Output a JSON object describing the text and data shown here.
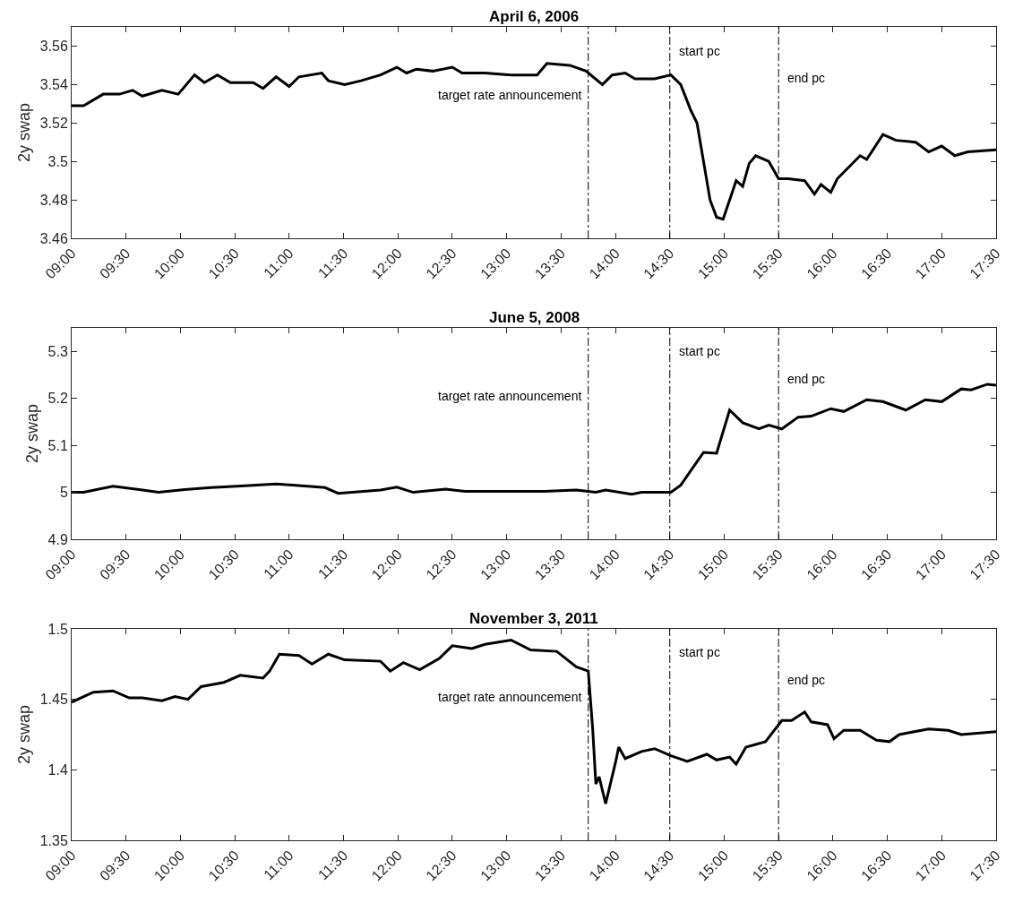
{
  "chart_data": [
    {
      "type": "line",
      "title": "April 6, 2006",
      "ylabel": "2y swap",
      "xlim": [
        9,
        17.5
      ],
      "ylim": [
        3.46,
        3.57
      ],
      "yticks": [
        3.46,
        3.48,
        3.5,
        3.52,
        3.54,
        3.56
      ],
      "marker": "none",
      "line_style": "solid",
      "xticks": [
        {
          "value": 9,
          "label": "09:00"
        },
        {
          "value": 9.5,
          "label": "09:30"
        },
        {
          "value": 10,
          "label": "10:00"
        },
        {
          "value": 10.5,
          "label": "10:30"
        },
        {
          "value": 11,
          "label": "11:00"
        },
        {
          "value": 11.5,
          "label": "11:30"
        },
        {
          "value": 12,
          "label": "12:00"
        },
        {
          "value": 12.5,
          "label": "12:30"
        },
        {
          "value": 13,
          "label": "13:00"
        },
        {
          "value": 13.5,
          "label": "13:30"
        },
        {
          "value": 14,
          "label": "14:00"
        },
        {
          "value": 14.5,
          "label": "14:30"
        },
        {
          "value": 15,
          "label": "15:00"
        },
        {
          "value": 15.5,
          "label": "15:30"
        },
        {
          "value": 16,
          "label": "16:00"
        },
        {
          "value": 16.5,
          "label": "16:30"
        },
        {
          "value": 17,
          "label": "17:00"
        },
        {
          "value": 17.5,
          "label": "17:30"
        }
      ],
      "x": [
        9,
        9.11,
        9.29,
        9.44,
        9.56,
        9.65,
        9.83,
        9.98,
        10.13,
        10.22,
        10.34,
        10.46,
        10.67,
        10.76,
        10.88,
        11.0,
        11.09,
        11.3,
        11.36,
        11.51,
        11.66,
        11.84,
        11.99,
        12.08,
        12.17,
        12.32,
        12.5,
        12.59,
        12.8,
        13.04,
        13.28,
        13.37,
        13.58,
        13.73,
        13.88,
        13.97,
        14.09,
        14.18,
        14.36,
        14.51,
        14.6,
        14.69,
        14.75,
        14.81,
        14.87,
        14.93,
        14.99,
        15.05,
        15.11,
        15.17,
        15.23,
        15.29,
        15.41,
        15.5,
        15.59,
        15.74,
        15.83,
        15.89,
        15.98,
        16.04,
        16.25,
        16.31,
        16.46,
        16.58,
        16.76,
        16.88,
        17.0,
        17.12,
        17.24,
        17.5
      ],
      "series": [
        {
          "color": "#000000",
          "values": [
            3.529,
            3.529,
            3.535,
            3.535,
            3.537,
            3.534,
            3.537,
            3.535,
            3.545,
            3.541,
            3.545,
            3.541,
            3.541,
            3.538,
            3.544,
            3.539,
            3.544,
            3.546,
            3.542,
            3.54,
            3.542,
            3.545,
            3.549,
            3.546,
            3.548,
            3.547,
            3.549,
            3.546,
            3.546,
            3.545,
            3.545,
            3.551,
            3.55,
            3.547,
            3.54,
            3.545,
            3.546,
            3.543,
            3.543,
            3.545,
            3.54,
            3.527,
            3.52,
            3.5,
            3.48,
            3.471,
            3.47,
            3.48,
            3.49,
            3.487,
            3.499,
            3.503,
            3.5,
            3.491,
            3.491,
            3.49,
            3.483,
            3.488,
            3.484,
            3.491,
            3.503,
            3.501,
            3.514,
            3.511,
            3.51,
            3.505,
            3.508,
            3.503,
            3.505,
            3.506
          ]
        }
      ],
      "ref_lines": [
        {
          "axis": "x",
          "value": 13.75,
          "label": "target rate announcement",
          "color": "#000000",
          "line_style": "dashdot"
        },
        {
          "axis": "x",
          "value": 14.5,
          "label": "start pc",
          "color": "#000000",
          "line_style": "dashdot"
        },
        {
          "axis": "x",
          "value": 15.5,
          "label": "end pc",
          "color": "#000000",
          "line_style": "dashdot"
        }
      ]
    },
    {
      "type": "line",
      "title": "June 5, 2008",
      "ylabel": "2y swap",
      "xlim": [
        9,
        17.5
      ],
      "ylim": [
        4.9,
        5.35
      ],
      "yticks": [
        4.9,
        5,
        5.1,
        5.2,
        5.3
      ],
      "marker": "none",
      "line_style": "solid",
      "xticks": [
        {
          "value": 9,
          "label": "09:00"
        },
        {
          "value": 9.5,
          "label": "09:30"
        },
        {
          "value": 10,
          "label": "10:00"
        },
        {
          "value": 10.5,
          "label": "10:30"
        },
        {
          "value": 11,
          "label": "11:00"
        },
        {
          "value": 11.5,
          "label": "11:30"
        },
        {
          "value": 12,
          "label": "12:00"
        },
        {
          "value": 12.5,
          "label": "12:30"
        },
        {
          "value": 13,
          "label": "13:00"
        },
        {
          "value": 13.5,
          "label": "13:30"
        },
        {
          "value": 14,
          "label": "14:00"
        },
        {
          "value": 14.5,
          "label": "14:30"
        },
        {
          "value": 15,
          "label": "15:00"
        },
        {
          "value": 15.5,
          "label": "15:30"
        },
        {
          "value": 16,
          "label": "16:00"
        },
        {
          "value": 16.5,
          "label": "16:30"
        },
        {
          "value": 17,
          "label": "17:00"
        },
        {
          "value": 17.5,
          "label": "17:30"
        }
      ],
      "x": [
        9,
        9.11,
        9.38,
        9.62,
        9.8,
        10.04,
        10.28,
        10.52,
        10.88,
        11.06,
        11.33,
        11.45,
        11.84,
        11.99,
        12.14,
        12.44,
        12.62,
        12.98,
        13.34,
        13.64,
        13.82,
        13.91,
        14.15,
        14.24,
        14.51,
        14.6,
        14.72,
        14.81,
        14.93,
        15.05,
        15.17,
        15.32,
        15.41,
        15.53,
        15.68,
        15.8,
        15.98,
        16.1,
        16.31,
        16.46,
        16.67,
        16.85,
        17.0,
        17.18,
        17.27,
        17.42,
        17.5
      ],
      "series": [
        {
          "color": "#000000",
          "values": [
            5.0,
            5.0,
            5.013,
            5.006,
            5.0,
            5.006,
            5.01,
            5.013,
            5.018,
            5.015,
            5.01,
            4.998,
            5.005,
            5.011,
            5.0,
            5.007,
            5.002,
            5.002,
            5.002,
            5.005,
            5.0,
            5.005,
            4.996,
            5.0,
            5.0,
            5.015,
            5.055,
            5.085,
            5.083,
            5.175,
            5.148,
            5.135,
            5.143,
            5.135,
            5.16,
            5.162,
            5.178,
            5.172,
            5.197,
            5.193,
            5.175,
            5.197,
            5.193,
            5.22,
            5.218,
            5.23,
            5.228
          ]
        }
      ],
      "ref_lines": [
        {
          "axis": "x",
          "value": 13.75,
          "label": "target rate announcement",
          "color": "#000000",
          "line_style": "dashdot"
        },
        {
          "axis": "x",
          "value": 14.5,
          "label": "start pc",
          "color": "#000000",
          "line_style": "dashdot"
        },
        {
          "axis": "x",
          "value": 15.5,
          "label": "end pc",
          "color": "#000000",
          "line_style": "dashdot"
        }
      ]
    },
    {
      "type": "line",
      "title": "November 3, 2011",
      "ylabel": "2y swap",
      "xlim": [
        9,
        17.5
      ],
      "ylim": [
        1.35,
        1.5
      ],
      "yticks": [
        1.35,
        1.4,
        1.45,
        1.5
      ],
      "marker": "none",
      "line_style": "solid",
      "xticks": [
        {
          "value": 9,
          "label": "09:00"
        },
        {
          "value": 9.5,
          "label": "09:30"
        },
        {
          "value": 10,
          "label": "10:00"
        },
        {
          "value": 10.5,
          "label": "10:30"
        },
        {
          "value": 11,
          "label": "11:00"
        },
        {
          "value": 11.5,
          "label": "11:30"
        },
        {
          "value": 12,
          "label": "12:00"
        },
        {
          "value": 12.5,
          "label": "12:30"
        },
        {
          "value": 13,
          "label": "13:00"
        },
        {
          "value": 13.5,
          "label": "13:30"
        },
        {
          "value": 14,
          "label": "14:00"
        },
        {
          "value": 14.5,
          "label": "14:30"
        },
        {
          "value": 15,
          "label": "15:00"
        },
        {
          "value": 15.5,
          "label": "15:30"
        },
        {
          "value": 16,
          "label": "16:00"
        },
        {
          "value": 16.5,
          "label": "16:30"
        },
        {
          "value": 17,
          "label": "17:00"
        },
        {
          "value": 17.5,
          "label": "17:30"
        }
      ],
      "x": [
        9,
        9.2,
        9.38,
        9.53,
        9.65,
        9.83,
        9.95,
        10.07,
        10.19,
        10.4,
        10.55,
        10.76,
        10.82,
        10.91,
        11.09,
        11.21,
        11.36,
        11.51,
        11.84,
        11.93,
        12.05,
        12.2,
        12.38,
        12.5,
        12.68,
        12.8,
        13.04,
        13.22,
        13.46,
        13.64,
        13.75,
        13.79,
        13.82,
        13.85,
        13.91,
        14.0,
        14.03,
        14.09,
        14.24,
        14.36,
        14.51,
        14.66,
        14.84,
        14.93,
        15.05,
        15.11,
        15.2,
        15.38,
        15.53,
        15.62,
        15.74,
        15.8,
        15.95,
        16.01,
        16.1,
        16.25,
        16.4,
        16.52,
        16.61,
        16.88,
        17.06,
        17.18,
        17.5
      ],
      "series": [
        {
          "color": "#000000",
          "values": [
            1.448,
            1.455,
            1.456,
            1.451,
            1.451,
            1.449,
            1.452,
            1.45,
            1.459,
            1.462,
            1.467,
            1.465,
            1.47,
            1.482,
            1.481,
            1.475,
            1.482,
            1.478,
            1.477,
            1.47,
            1.476,
            1.471,
            1.479,
            1.488,
            1.486,
            1.489,
            1.492,
            1.485,
            1.484,
            1.473,
            1.47,
            1.43,
            1.39,
            1.395,
            1.376,
            1.405,
            1.416,
            1.408,
            1.413,
            1.415,
            1.41,
            1.406,
            1.411,
            1.407,
            1.409,
            1.404,
            1.416,
            1.42,
            1.435,
            1.435,
            1.441,
            1.434,
            1.432,
            1.422,
            1.428,
            1.428,
            1.421,
            1.42,
            1.425,
            1.429,
            1.428,
            1.425,
            1.427
          ]
        }
      ],
      "ref_lines": [
        {
          "axis": "x",
          "value": 13.75,
          "label": "target rate announcement",
          "color": "#000000",
          "line_style": "dashdot"
        },
        {
          "axis": "x",
          "value": 14.5,
          "label": "start pc",
          "color": "#000000",
          "line_style": "dashdot"
        },
        {
          "axis": "x",
          "value": 15.5,
          "label": "end pc",
          "color": "#000000",
          "line_style": "dashdot"
        }
      ]
    }
  ]
}
